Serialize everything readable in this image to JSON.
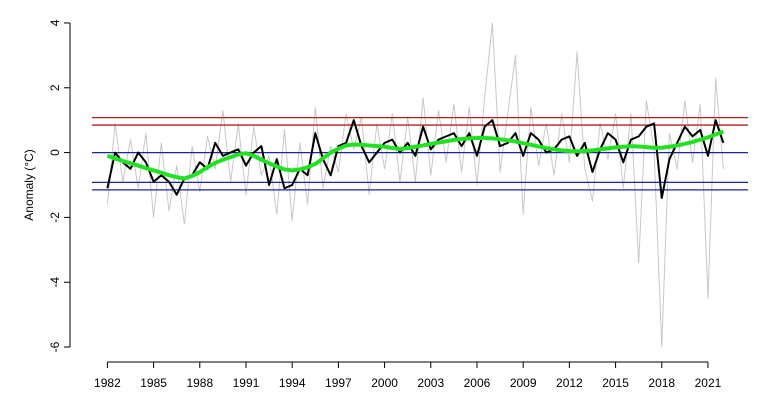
{
  "chart_data": {
    "type": "line",
    "ylabel": "Anomaly (°C)",
    "x": [
      1982,
      1982.5,
      1983,
      1983.5,
      1984,
      1984.5,
      1985,
      1985.5,
      1986,
      1986.5,
      1987,
      1987.5,
      1988,
      1988.5,
      1989,
      1989.5,
      1990,
      1990.5,
      1991,
      1991.5,
      1992,
      1992.5,
      1993,
      1993.5,
      1994,
      1994.5,
      1995,
      1995.5,
      1996,
      1996.5,
      1997,
      1997.5,
      1998,
      1998.5,
      1999,
      1999.5,
      2000,
      2000.5,
      2001,
      2001.5,
      2002,
      2002.5,
      2003,
      2003.5,
      2004,
      2004.5,
      2005,
      2005.5,
      2006,
      2006.5,
      2007,
      2007.5,
      2008,
      2008.5,
      2009,
      2009.5,
      2010,
      2010.5,
      2011,
      2011.5,
      2012,
      2012.5,
      2013,
      2013.5,
      2014,
      2014.5,
      2015,
      2015.5,
      2016,
      2016.5,
      2017,
      2017.5,
      2018,
      2018.5,
      2019,
      2019.5,
      2020,
      2020.5,
      2021,
      2021.5,
      2022
    ],
    "series": [
      {
        "color": "#c8c8c8",
        "width": 1,
        "values": [
          -1.6,
          0.9,
          -0.9,
          0.4,
          -1.1,
          0.6,
          -2.0,
          0.3,
          -1.8,
          -0.4,
          -2.2,
          0.2,
          -1.2,
          0.5,
          -0.5,
          1.3,
          -0.9,
          0.9,
          -1.3,
          0.8,
          -0.7,
          -0.1,
          -1.9,
          0.7,
          -2.1,
          0.3,
          -1.6,
          1.4,
          -1.1,
          0.2,
          -0.6,
          1.2,
          0.1,
          1.1,
          -1.3,
          0.9,
          -0.5,
          1.2,
          -0.9,
          1.1,
          -0.9,
          1.7,
          -0.7,
          1.3,
          -0.3,
          1.5,
          -0.6,
          1.4,
          -1.0,
          1.7,
          4.0,
          -0.6,
          1.2,
          3.0,
          -1.9,
          1.4,
          -0.4,
          0.9,
          -0.7,
          1.2,
          -0.3,
          3.1,
          -0.5,
          -1.5,
          0.9,
          -0.2,
          1.2,
          -1.1,
          1.2,
          -3.4,
          1.6,
          0.1,
          -6.0,
          0.6,
          -0.5,
          1.6,
          -0.3,
          1.5,
          -4.5,
          2.3,
          -0.5
        ]
      },
      {
        "color": "#000000",
        "width": 2,
        "values": [
          -1.1,
          0.0,
          -0.3,
          -0.5,
          0.0,
          -0.3,
          -0.9,
          -0.7,
          -0.9,
          -1.3,
          -0.8,
          -0.7,
          -0.3,
          -0.5,
          0.3,
          -0.1,
          0.0,
          0.1,
          -0.4,
          0.0,
          0.2,
          -1.0,
          -0.2,
          -1.1,
          -1.0,
          -0.5,
          -0.7,
          0.6,
          -0.2,
          -0.7,
          0.2,
          0.3,
          1.0,
          0.2,
          -0.3,
          0.0,
          0.3,
          0.4,
          0.0,
          0.3,
          -0.1,
          0.8,
          0.1,
          0.4,
          0.5,
          0.6,
          0.2,
          0.6,
          -0.1,
          0.8,
          1.0,
          0.2,
          0.3,
          0.6,
          -0.1,
          0.6,
          0.4,
          0.0,
          0.1,
          0.4,
          0.5,
          -0.1,
          0.3,
          -0.6,
          0.1,
          0.6,
          0.4,
          -0.3,
          0.4,
          0.5,
          0.8,
          0.9,
          -1.4,
          -0.2,
          0.3,
          0.8,
          0.5,
          0.7,
          -0.1,
          1.0,
          0.3
        ]
      },
      {
        "color": "#22e022",
        "width": 4,
        "values": [
          -0.1,
          -0.18,
          -0.26,
          -0.33,
          -0.4,
          -0.48,
          -0.55,
          -0.62,
          -0.7,
          -0.76,
          -0.8,
          -0.72,
          -0.6,
          -0.45,
          -0.32,
          -0.22,
          -0.14,
          -0.06,
          -0.02,
          -0.1,
          -0.22,
          -0.33,
          -0.43,
          -0.52,
          -0.55,
          -0.52,
          -0.45,
          -0.35,
          -0.18,
          0.0,
          0.12,
          0.22,
          0.25,
          0.24,
          0.22,
          0.2,
          0.18,
          0.14,
          0.11,
          0.14,
          0.18,
          0.22,
          0.27,
          0.31,
          0.35,
          0.39,
          0.42,
          0.44,
          0.45,
          0.45,
          0.44,
          0.41,
          0.38,
          0.34,
          0.29,
          0.24,
          0.19,
          0.14,
          0.1,
          0.07,
          0.05,
          0.04,
          0.05,
          0.07,
          0.1,
          0.13,
          0.16,
          0.18,
          0.2,
          0.19,
          0.17,
          0.15,
          0.15,
          0.18,
          0.22,
          0.27,
          0.33,
          0.4,
          0.47,
          0.56,
          0.65
        ]
      }
    ],
    "hlines": [
      {
        "value": 1.08,
        "color": "#b22222"
      },
      {
        "value": 0.85,
        "color": "#b22222"
      },
      {
        "value": 0,
        "color": "#22229a"
      },
      {
        "value": -0.92,
        "color": "#22229a"
      },
      {
        "value": -1.15,
        "color": "#22229a"
      }
    ],
    "xlim": [
      1981,
      2023.6
    ],
    "ylim": [
      -6.4,
      4.4
    ],
    "xticks": [
      1982,
      1985,
      1988,
      1991,
      1994,
      1997,
      2000,
      2003,
      2006,
      2009,
      2012,
      2015,
      2018,
      2021
    ],
    "yticks": [
      -6,
      -4,
      -2,
      0,
      2,
      4
    ]
  }
}
